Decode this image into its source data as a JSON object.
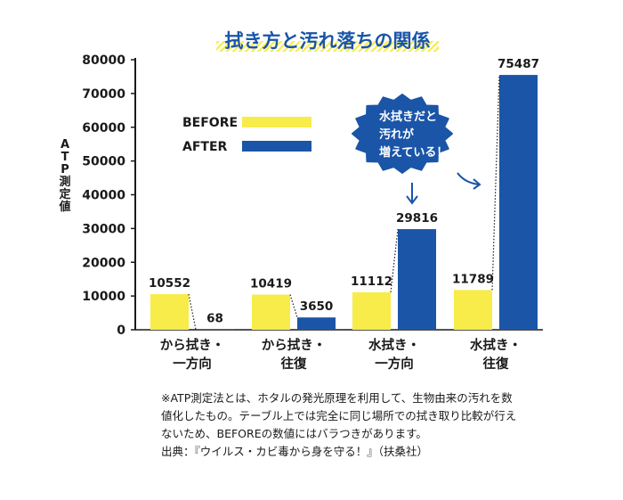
{
  "chart_data": {
    "type": "bar",
    "title": "拭き方と汚れ落ちの関係",
    "ylabel": "ATP測定値",
    "ylim": [
      0,
      80000
    ],
    "yticks": [
      "80000",
      "70000",
      "60000",
      "50000",
      "40000",
      "30000",
      "20000",
      "10000",
      "0"
    ],
    "categories": [
      [
        "から拭き・",
        "一方向"
      ],
      [
        "から拭き・",
        "往復"
      ],
      [
        "水拭き・",
        "一方向"
      ],
      [
        "水拭き・",
        "往復"
      ]
    ],
    "series": [
      {
        "name": "BEFORE",
        "color": "#f7ec4a",
        "values": [
          10552,
          10419,
          11112,
          11789
        ]
      },
      {
        "name": "AFTER",
        "color": "#1a55a8",
        "values": [
          68,
          3650,
          29816,
          75487
        ]
      }
    ],
    "legend_position": "top-left",
    "grid": false,
    "annotation": {
      "lines": [
        "水拭きだと",
        "汚れが",
        "増えている！"
      ],
      "color": "#1a55a8"
    }
  },
  "footnote": {
    "lines": [
      "※ATP測定法とは、ホタルの発光原理を利用して、生物由来の汚れを数",
      "値化したもの。テーブル上では完全に同じ場所での拭き取り比較が行え",
      "ないため、BEFOREの数値にはバラつきがあります。"
    ],
    "source": "出典：『ウイルス・カビ毒から身を守る！』（扶桑社）"
  }
}
